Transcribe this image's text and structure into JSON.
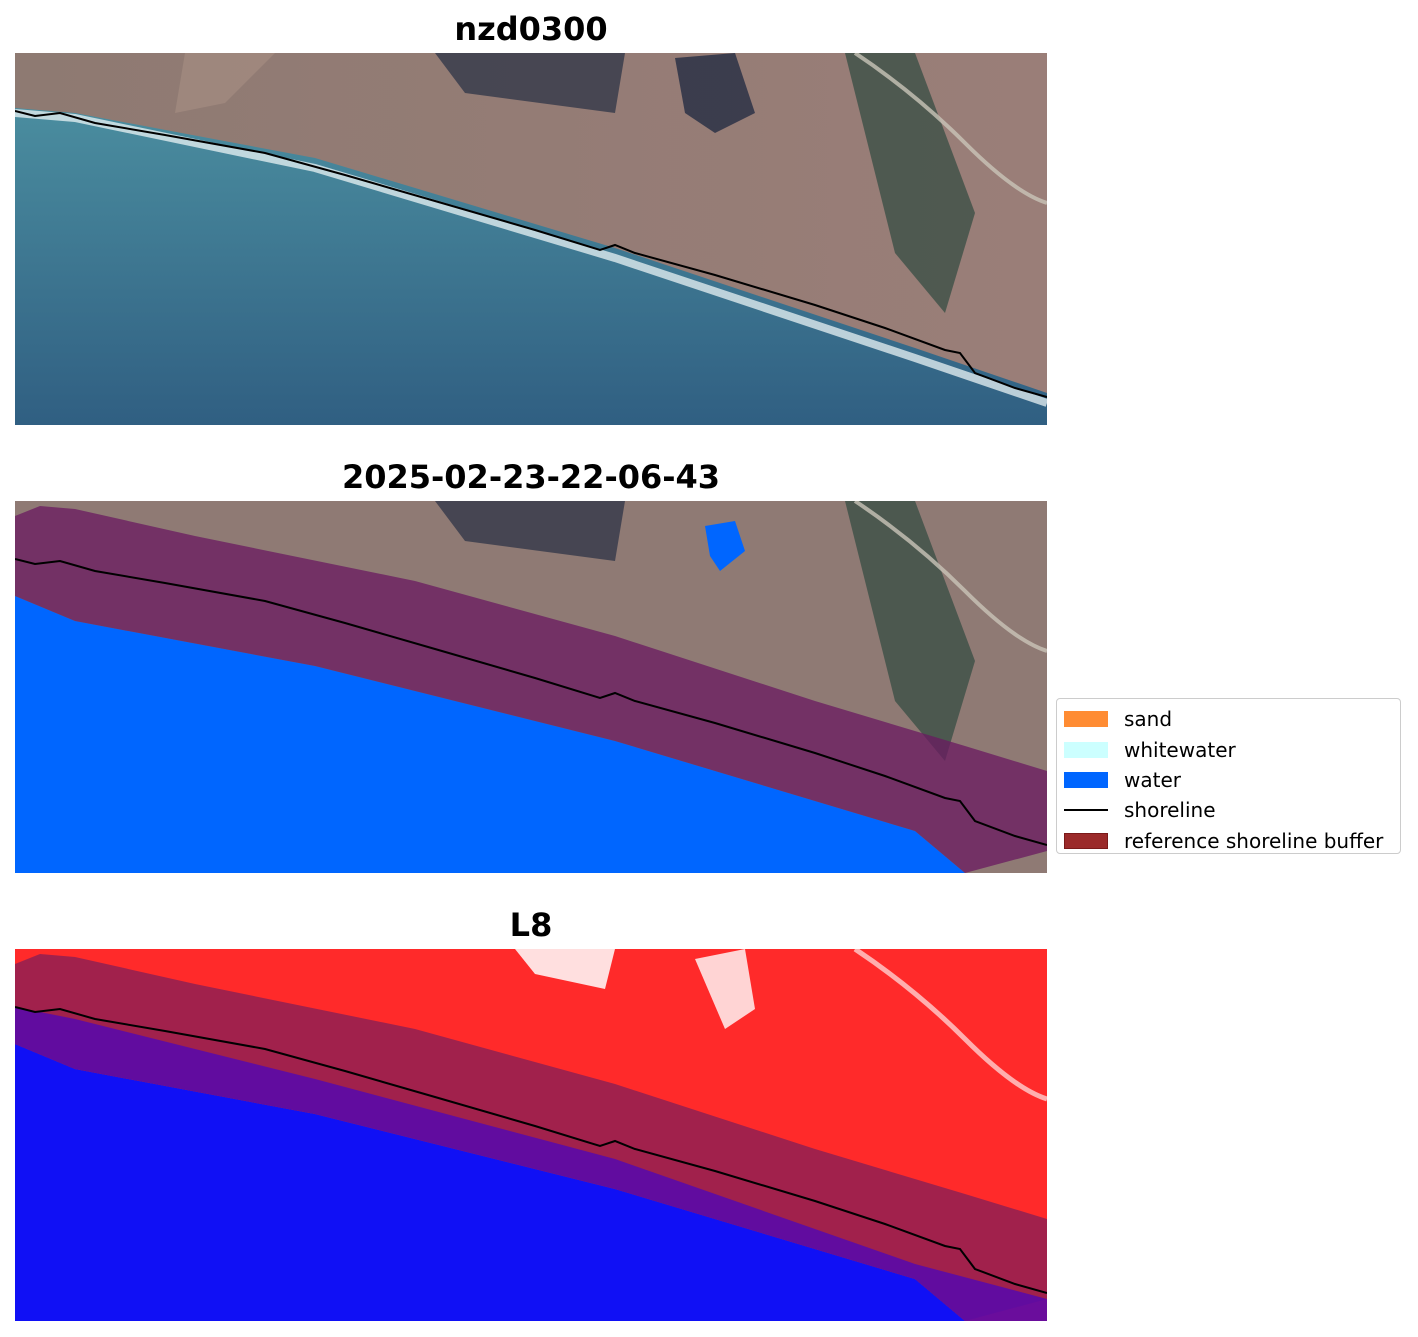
{
  "panels": [
    {
      "title": "nzd0300"
    },
    {
      "title": "2025-02-23-22-06-43"
    },
    {
      "title": "L8"
    }
  ],
  "legend": {
    "items": [
      {
        "label": "sand",
        "color": "#ff8c33",
        "kind": "patch"
      },
      {
        "label": "whitewater",
        "color": "#ccffff",
        "kind": "patch"
      },
      {
        "label": "water",
        "color": "#0066ff",
        "kind": "patch"
      },
      {
        "label": "shoreline",
        "color": "#000000",
        "kind": "line"
      },
      {
        "label": "reference shoreline buffer",
        "color": "#9b2a2a",
        "kind": "patch"
      }
    ]
  },
  "colors": {
    "land": "#8f7a74",
    "sea": "#3f7d93",
    "water_class": "#0066ff",
    "buffer": "#8a1f55",
    "l8_land": "#ff2a2a",
    "l8_water": "#1010f5",
    "l8_buffer_over_water": "#5a0aa8"
  }
}
